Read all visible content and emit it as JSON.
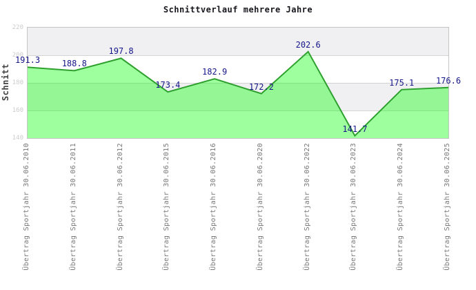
{
  "title": "Schnittverlauf mehrere Jahre",
  "y_axis": {
    "label": "Schnitt",
    "tick_labels": [
      "220",
      "200",
      "180",
      "160",
      "140"
    ]
  },
  "chart_data": {
    "type": "area",
    "title": "Schnittverlauf mehrere Jahre",
    "xlabel": "",
    "ylabel": "Schnitt",
    "categories": [
      "Übertrag Sportjahr 30.06.2010",
      "Übertrag Sportjahr 30.06.2011",
      "Übertrag Sportjahr 30.06.2012",
      "Übertrag Sportjahr 30.06.2015",
      "Übertrag Sportjahr 30.06.2016",
      "Übertrag Sportjahr 30.06.2020",
      "Übertrag Sportjahr 30.06.2022",
      "Übertrag Sportjahr 30.06.2023",
      "Übertrag Sportjahr 30.06.2024",
      "Übertrag Sportjahr 30.06.2025"
    ],
    "values": [
      191.3,
      188.8,
      197.8,
      173.4,
      182.9,
      172.2,
      202.6,
      141.7,
      175.1,
      176.6
    ],
    "value_labels": [
      "191.3",
      "188.8",
      "197.8",
      "173.4",
      "182.9",
      "172.2",
      "202.6",
      "141.7",
      "175.1",
      "176.6"
    ],
    "ylim": [
      140,
      220
    ],
    "y_ticks": [
      220,
      200,
      180,
      160,
      140
    ],
    "grid": "horizontal-bands",
    "legend": "none",
    "colors": {
      "area_fill": "rgba(0,255,0,0.38)",
      "line": "#2da02d",
      "value_label": "#15158a",
      "band_gray": "#f0f0f2",
      "band_white": "#ffffff",
      "gridline": "#cccccc",
      "plot_border": "#c4c4c4",
      "y_tick_text": "#cccccc",
      "x_tick_text": "#787878",
      "axis_title_text": "#404040",
      "title_text": "#16161d"
    }
  }
}
